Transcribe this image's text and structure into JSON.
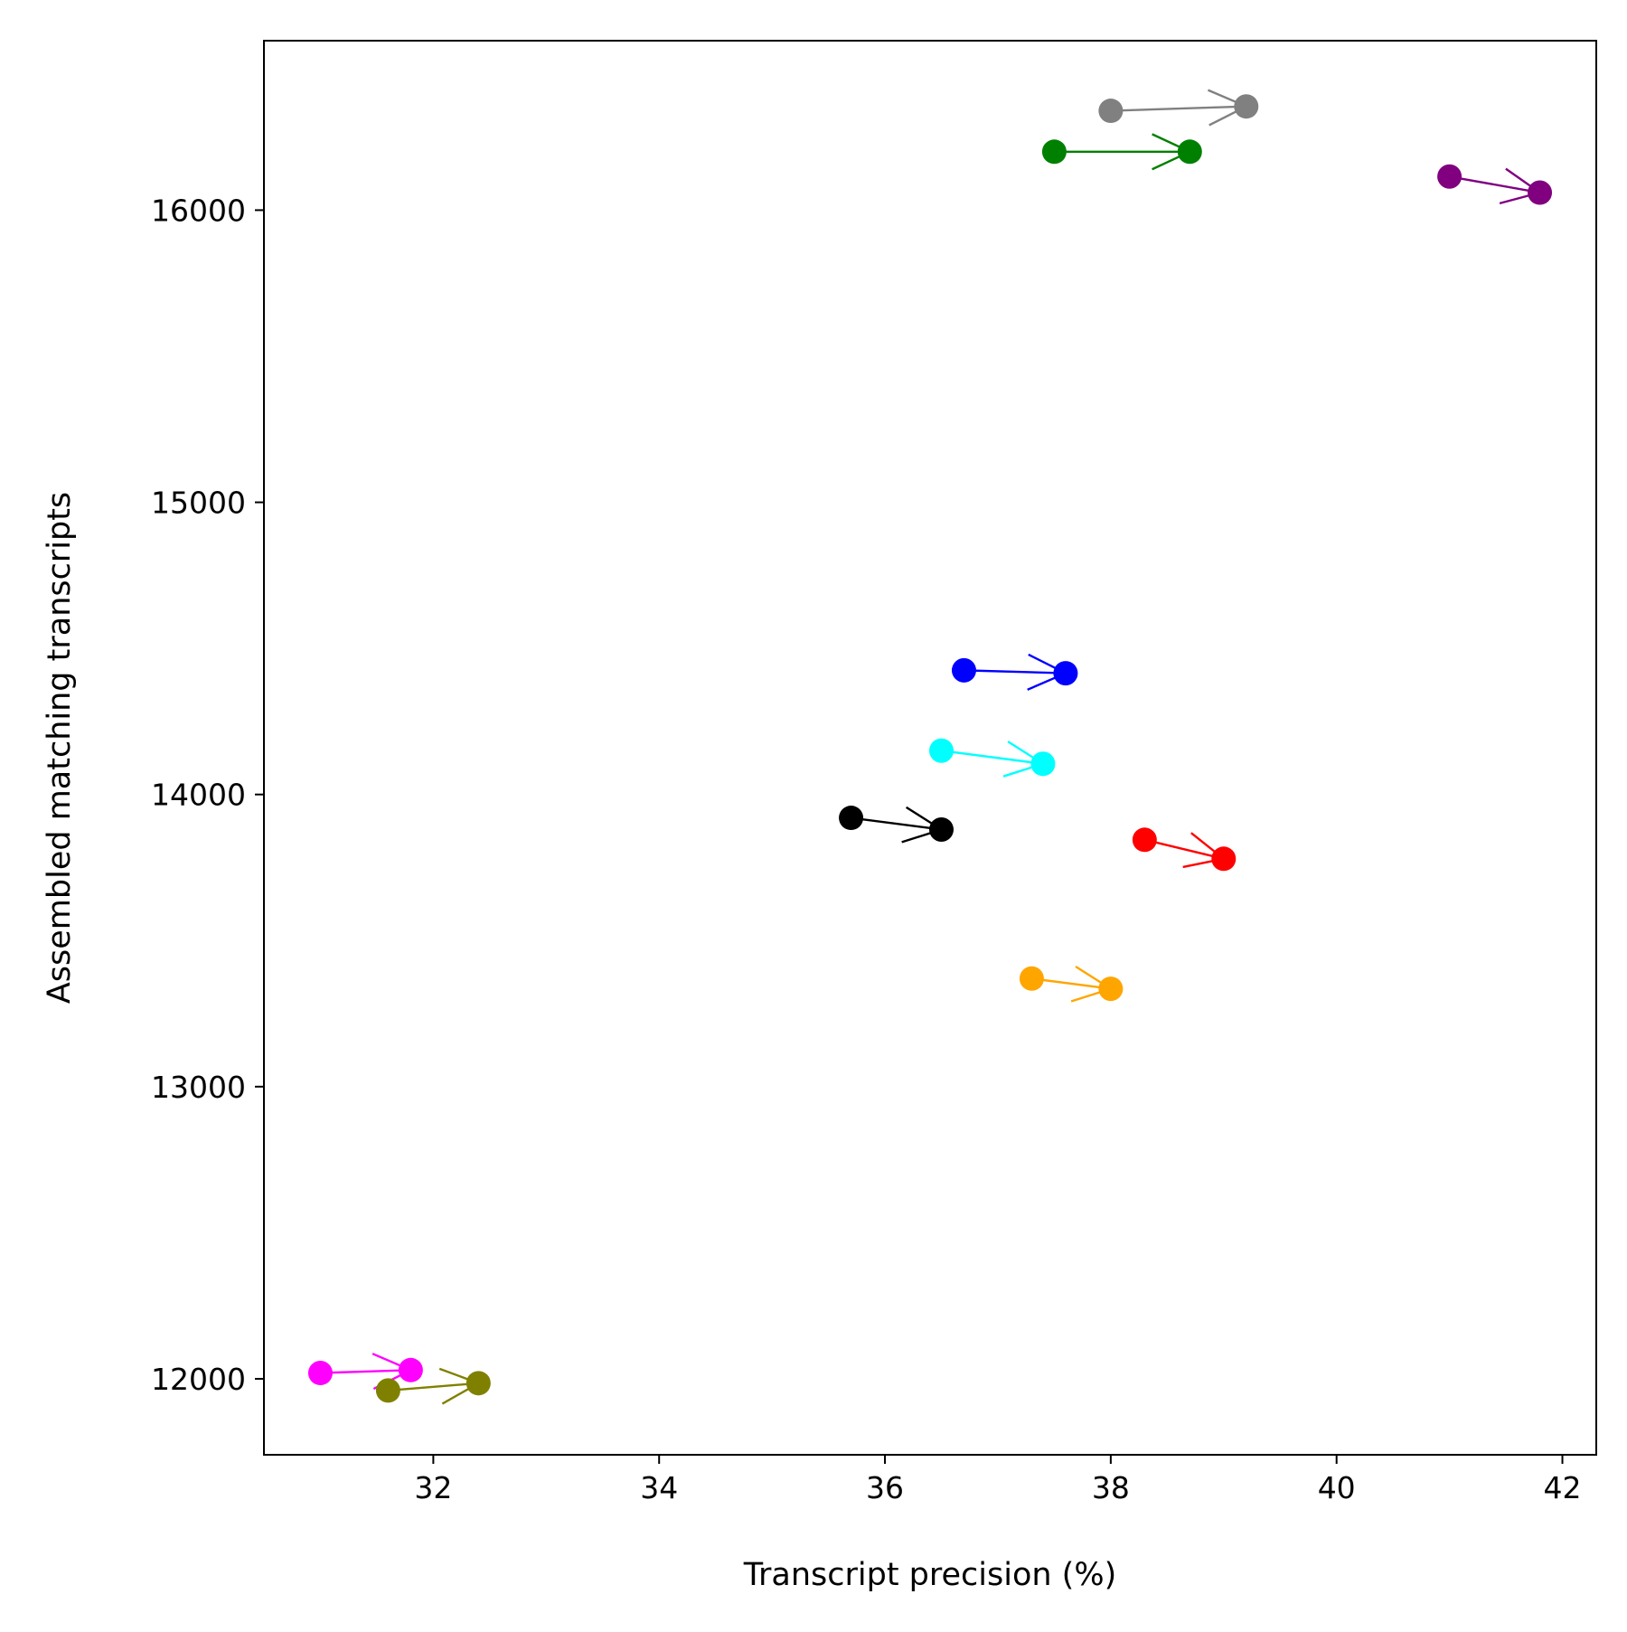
{
  "chart_data": {
    "type": "scatter",
    "title": "",
    "xlabel": "Transcript precision (%)",
    "ylabel": "Assembled matching transcripts",
    "xlim": [
      30.5,
      42.3
    ],
    "ylim": [
      11740,
      16580
    ],
    "x_ticks": [
      32,
      34,
      36,
      38,
      40,
      42
    ],
    "y_ticks": [
      12000,
      13000,
      14000,
      15000,
      16000
    ],
    "grid": false,
    "legend": "none",
    "series": [
      {
        "color": "#808080",
        "from": {
          "x": 38.0,
          "y": 16340
        },
        "to": {
          "x": 39.2,
          "y": 16355
        }
      },
      {
        "color": "#008000",
        "from": {
          "x": 37.5,
          "y": 16200
        },
        "to": {
          "x": 38.7,
          "y": 16200
        }
      },
      {
        "color": "#800080",
        "from": {
          "x": 41.0,
          "y": 16115
        },
        "to": {
          "x": 41.8,
          "y": 16060
        }
      },
      {
        "color": "#0000ff",
        "from": {
          "x": 36.7,
          "y": 14425
        },
        "to": {
          "x": 37.6,
          "y": 14415
        }
      },
      {
        "color": "#00ffff",
        "from": {
          "x": 36.5,
          "y": 14150
        },
        "to": {
          "x": 37.4,
          "y": 14105
        }
      },
      {
        "color": "#000000",
        "from": {
          "x": 35.7,
          "y": 13920
        },
        "to": {
          "x": 36.5,
          "y": 13880
        }
      },
      {
        "color": "#ff0000",
        "from": {
          "x": 38.3,
          "y": 13845
        },
        "to": {
          "x": 39.0,
          "y": 13780
        }
      },
      {
        "color": "#ffa500",
        "from": {
          "x": 37.3,
          "y": 13370
        },
        "to": {
          "x": 38.0,
          "y": 13335
        }
      },
      {
        "color": "#ff00ff",
        "from": {
          "x": 31.0,
          "y": 12020
        },
        "to": {
          "x": 31.8,
          "y": 12030
        }
      },
      {
        "color": "#808000",
        "from": {
          "x": 31.6,
          "y": 11960
        },
        "to": {
          "x": 32.4,
          "y": 11985
        }
      }
    ]
  }
}
